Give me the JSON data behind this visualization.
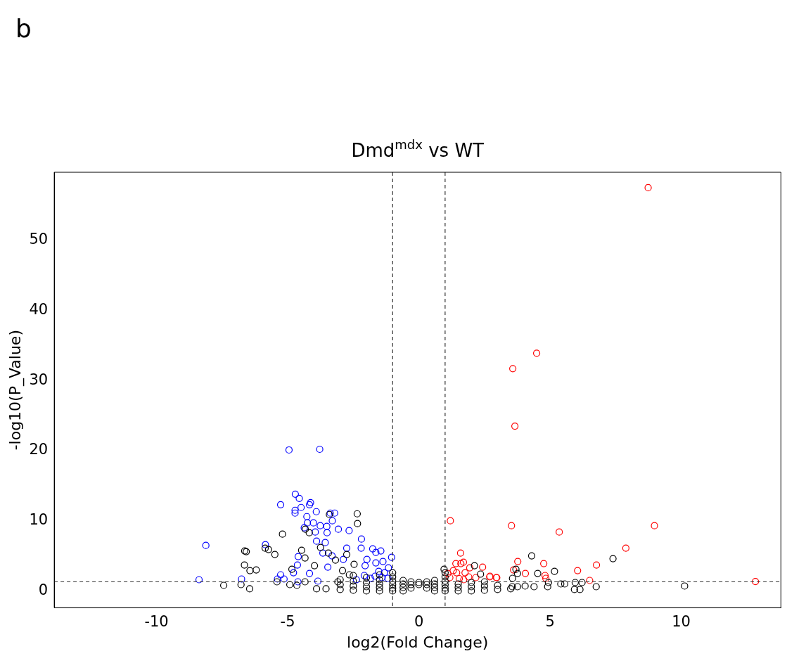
{
  "chart_data": {
    "type": "scatter",
    "title": "Dmd$^{mdx}$ vs WT",
    "xlabel": "log2(Fold Change)",
    "ylabel": "-log10(P_Value)",
    "annotations": [
      "b"
    ],
    "xlim": [
      -13.9,
      13.8
    ],
    "ylim": [
      -2.4,
      59.7
    ],
    "xticks": [
      -10,
      -5,
      0,
      5,
      10
    ],
    "yticks": [
      0,
      10,
      20,
      30,
      40,
      50
    ],
    "grid": false,
    "legend": false,
    "marker": "circle",
    "ref_lines": [
      {
        "axis": "x",
        "value": -1,
        "label": null,
        "color": "#333333",
        "line_style": "dashed"
      },
      {
        "axis": "x",
        "value": 1,
        "label": null,
        "color": "#333333",
        "line_style": "dashed"
      },
      {
        "axis": "y",
        "value": 1.3,
        "label": null,
        "color": "#333333",
        "line_style": "dashed"
      }
    ],
    "series": [
      {
        "color": "#000000",
        "x": [
          -2.35,
          -2.34,
          -3.41,
          -5.2,
          -4.18,
          -4.33,
          -6.64,
          -6.58,
          -5.86,
          -5.73,
          -5.49,
          -6.65,
          -6.44,
          -6.2,
          -7.44,
          -6.78,
          -6.45,
          -4.47,
          -3.75,
          -2.75,
          -3.18,
          -2.47,
          -4.84,
          -4.34,
          -3.98,
          -3.45,
          -4.92,
          -4.65,
          -3.9,
          -3.54,
          -2.91,
          -2.65,
          -5.41,
          -4.34,
          -3.09,
          4.3,
          7.4,
          5.17,
          4.53,
          2.12,
          3.57,
          3.76,
          3.7,
          10.13,
          6.76,
          5.93,
          6.14,
          5.96,
          6.22,
          5.41,
          5.56,
          4.91,
          4.94,
          4.05,
          4.39,
          3.76,
          3.56,
          2.35,
          0.96,
          -3,
          -3,
          -3,
          -2.5,
          -2.5,
          -2.5,
          -2.5,
          -2,
          -2,
          -2,
          -2,
          -1.5,
          -1.5,
          -1.5,
          -1.5,
          -1.5,
          -1,
          -1,
          -1,
          -1,
          -1,
          -1,
          -0.6,
          -0.6,
          -0.6,
          -0.6,
          -0.3,
          -0.3,
          -0.3,
          0,
          0,
          0.3,
          0.3,
          0.3,
          0.6,
          0.6,
          0.6,
          0.6,
          1,
          1,
          1,
          1,
          1,
          1,
          1.5,
          1.5,
          1.5,
          2,
          2,
          2,
          2.5,
          2.5,
          2.5,
          3,
          3,
          3.5
        ],
        "values": [
          11.0,
          9.6,
          10.9,
          8.1,
          8.3,
          8.8,
          5.7,
          5.6,
          6.1,
          5.9,
          5.2,
          3.7,
          2.9,
          3.0,
          0.8,
          0.9,
          0.3,
          5.8,
          6.2,
          5.2,
          4.4,
          3.8,
          3.1,
          4.7,
          3.6,
          5.4,
          0.9,
          0.8,
          0.3,
          0.3,
          2.9,
          2.3,
          1.3,
          1.3,
          1.3,
          5.0,
          4.6,
          2.8,
          2.5,
          3.6,
          1.8,
          2.5,
          3.1,
          0.7,
          0.6,
          0.2,
          0.2,
          1.2,
          1.2,
          1.0,
          1.0,
          0.6,
          1.2,
          0.7,
          0.6,
          0.6,
          0.6,
          2.4,
          3.1,
          0.2,
          0.9,
          1.6,
          0.1,
          0.7,
          1.4,
          2.2,
          0.0,
          0.6,
          1.2,
          1.9,
          0.0,
          0.5,
          1.0,
          1.6,
          2.3,
          0.0,
          0.4,
          0.9,
          1.4,
          2.0,
          2.6,
          0.0,
          0.5,
          1.0,
          1.5,
          0.4,
          0.9,
          1.3,
          0.9,
          1.2,
          0.4,
          0.9,
          1.3,
          0.0,
          0.5,
          1.0,
          1.5,
          0.0,
          0.4,
          0.9,
          1.4,
          2.0,
          2.6,
          0.0,
          0.5,
          1.0,
          0.0,
          0.6,
          1.2,
          0.1,
          0.7,
          1.3,
          0.2,
          0.8,
          0.3
        ]
      },
      {
        "color": "#0000ff",
        "x": [
          -4.95,
          -3.78,
          -4.71,
          -4.56,
          -5.27,
          -4.13,
          -4.17,
          -4.49,
          -4.72,
          -4.72,
          -3.91,
          -3.38,
          -3.21,
          -4.27,
          -3.3,
          -4.25,
          -4.02,
          -3.76,
          -3.51,
          -3.07,
          -4.37,
          -3.95,
          -3.5,
          -2.66,
          -2.19,
          -3.9,
          -3.57,
          -8.12,
          -5.85,
          -2.75,
          -2.2,
          -1.76,
          -1.64,
          -1.45,
          -3.66,
          -1.04,
          -4.6,
          -3.31,
          -2.88,
          -1.98,
          -1.37,
          -1.64,
          -4.63,
          -2.05,
          -1.16,
          -3.47,
          -4.78,
          -5.27,
          -4.17,
          -2.08,
          -8.38,
          -6.76,
          -5.14,
          -5.39,
          -1.67,
          -1.4,
          -1.18,
          -4.61,
          -3.85,
          -2.38,
          -1.84,
          -1.53,
          -1.31
        ],
        "values": [
          20.1,
          20.2,
          13.8,
          13.2,
          12.3,
          12.6,
          12.3,
          11.9,
          11.5,
          11.1,
          11.3,
          11.1,
          11.1,
          10.6,
          10.0,
          9.7,
          9.7,
          9.3,
          9.2,
          8.8,
          9.0,
          8.4,
          8.3,
          8.6,
          7.4,
          7.1,
          6.9,
          6.5,
          6.6,
          6.1,
          6.1,
          6.0,
          5.5,
          5.7,
          5.4,
          4.8,
          4.9,
          5.0,
          4.5,
          4.5,
          4.2,
          4.0,
          3.7,
          3.6,
          3.3,
          3.4,
          2.6,
          2.3,
          2.5,
          2.2,
          1.6,
          1.7,
          1.7,
          1.7,
          2.1,
          1.9,
          1.8,
          1.3,
          1.4,
          1.6,
          1.8,
          2.8,
          2.6
        ]
      },
      {
        "color": "#ff0000",
        "x": [
          8.74,
          4.49,
          3.58,
          3.66,
          1.2,
          3.53,
          5.35,
          8.98,
          7.89,
          6.77,
          6.05,
          1.59,
          3.77,
          4.76,
          4.06,
          6.51,
          12.83,
          4.81,
          4.84,
          3.61,
          2.43,
          2.71,
          2.95,
          1.41,
          1.6,
          1.7,
          1.94,
          1.1,
          1.18,
          1.44,
          1.76,
          1.9,
          2.17,
          2.7,
          2.97,
          1.54,
          1.71,
          1.31
        ],
        "values": [
          57.5,
          33.9,
          31.7,
          23.5,
          10.0,
          9.3,
          8.4,
          9.3,
          6.1,
          3.7,
          2.9,
          5.4,
          4.2,
          3.9,
          2.5,
          1.5,
          1.34,
          2.2,
          1.8,
          3.0,
          3.4,
          2.1,
          1.9,
          3.9,
          3.9,
          4.1,
          3.3,
          2.5,
          1.9,
          2.6,
          2.6,
          2.0,
          1.9,
          2.0,
          1.9,
          1.75,
          1.6,
          2.9
        ]
      }
    ]
  }
}
